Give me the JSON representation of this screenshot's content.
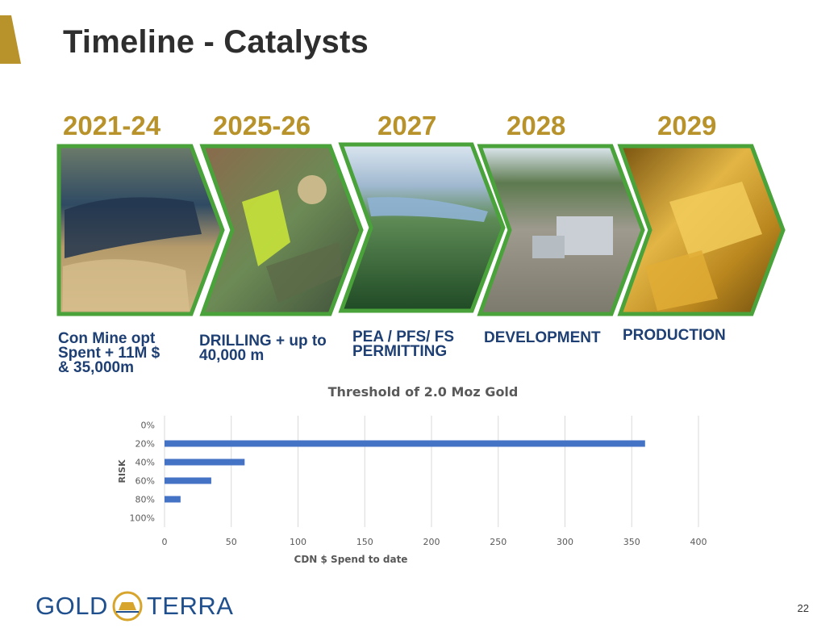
{
  "title": "Timeline - Catalysts",
  "phases": [
    {
      "year": "2021-24",
      "caption": [
        "Con Mine opt",
        "Spent + 11M $",
        "& 35,000m"
      ],
      "photo_icon": "aerial-tailings-landscape-icon"
    },
    {
      "year": "2025-26",
      "caption": [
        "DRILLING + up to",
        "40,000 m"
      ],
      "photo_icon": "core-logging-geologist-icon"
    },
    {
      "year": "2027",
      "caption": [
        "PEA / PFS/ FS",
        "PERMITTING"
      ],
      "photo_icon": "lake-forest-aerial-icon"
    },
    {
      "year": "2028",
      "caption": [
        "DEVELOPMENT"
      ],
      "photo_icon": "mine-site-construction-icon"
    },
    {
      "year": "2029",
      "caption": [
        "PRODUCTION"
      ],
      "photo_icon": "gold-bars-icon"
    }
  ],
  "chart_data": {
    "type": "bar",
    "orientation": "horizontal",
    "title": "Threshold of 2.0 Moz Gold",
    "xlabel": "CDN $ Spend to date",
    "ylabel": "RISK",
    "categories": [
      "0%",
      "20%",
      "40%",
      "60%",
      "80%",
      "100%"
    ],
    "values": [
      0,
      360,
      60,
      35,
      12,
      0
    ],
    "xlim": [
      0,
      400
    ],
    "xticks": [
      "0",
      "50",
      "100",
      "150",
      "200",
      "250",
      "300",
      "350",
      "400"
    ],
    "grid": "vertical",
    "legend": "none",
    "bar_color": "#4472c4"
  },
  "colors": {
    "accent_gold": "#b8922a",
    "frame_green": "#4aa23a",
    "caption_navy": "#1e3f73",
    "logo_blue": "#1f4f8c"
  },
  "logo": {
    "left": "GOLD",
    "right": "TERRA",
    "icon": "gold-bar-circle-icon"
  },
  "page_number": "22"
}
